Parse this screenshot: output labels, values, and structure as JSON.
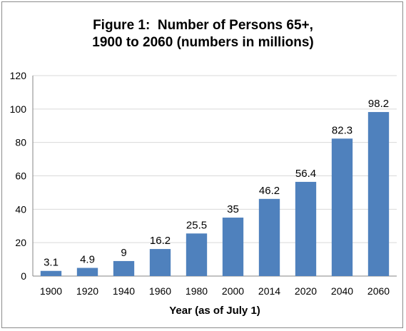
{
  "chart_data": {
    "type": "bar",
    "title_lines": [
      "Figure 1:  Number of Persons 65+,",
      "1900 to 2060 (numbers in millions)"
    ],
    "xlabel": "Year (as of July 1)",
    "ylabel": "",
    "categories": [
      "1900",
      "1920",
      "1940",
      "1960",
      "1980",
      "2000",
      "2014",
      "2020",
      "2040",
      "2060"
    ],
    "values": [
      3.1,
      4.9,
      9,
      16.2,
      25.5,
      35,
      46.2,
      56.4,
      82.3,
      98.2
    ],
    "data_labels": [
      "3.1",
      "4.9",
      "9",
      "16.2",
      "25.5",
      "35",
      "46.2",
      "56.4",
      "82.3",
      "98.2"
    ],
    "ylim": [
      0,
      120
    ],
    "yticks": [
      "0",
      "20",
      "40",
      "60",
      "80",
      "100",
      "120"
    ],
    "grid": true,
    "legend": "none",
    "bar_color": "#4f81bd",
    "grid_color": "#d9d9d9"
  }
}
